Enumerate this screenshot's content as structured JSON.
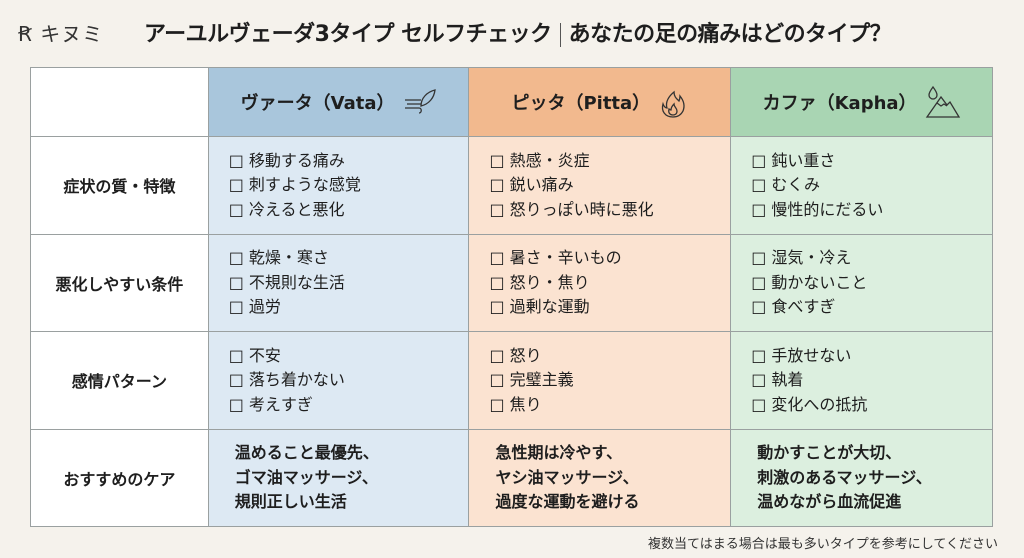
{
  "logo": "キヌミ",
  "title": {
    "main": "アーユルヴェーダ3タイプ セルフチェック",
    "sub": "あなたの足の痛みはどのタイプ？"
  },
  "columns": [
    {
      "label": "ヴァータ（Vata）",
      "icon": "wind-feather-icon",
      "color": "#a9c6dc"
    },
    {
      "label": "ピッタ（Pitta）",
      "icon": "flame-icon",
      "color": "#f2b98e"
    },
    {
      "label": "カファ（Kapha）",
      "icon": "water-mountain-icon",
      "color": "#a9d5b3"
    }
  ],
  "rows": [
    {
      "label": "症状の質・特徴",
      "cells": [
        [
          "□ 移動する痛み",
          "□ 刺すような感覚",
          "□ 冷えると悪化"
        ],
        [
          "□ 熱感・炎症",
          "□ 鋭い痛み",
          "□ 怒りっぽい時に悪化"
        ],
        [
          "□ 鈍い重さ",
          "□ むくみ",
          "□ 慢性的にだるい"
        ]
      ]
    },
    {
      "label": "悪化しやすい条件",
      "cells": [
        [
          "□ 乾燥・寒さ",
          "□ 不規則な生活",
          "□ 過労"
        ],
        [
          "□ 暑さ・辛いもの",
          "□ 怒り・焦り",
          "□ 過剰な運動"
        ],
        [
          "□ 湿気・冷え",
          "□ 動かないこと",
          "□ 食べすぎ"
        ]
      ]
    },
    {
      "label": "感情パターン",
      "cells": [
        [
          "□ 不安",
          "□ 落ち着かない",
          "□ 考えすぎ"
        ],
        [
          "□ 怒り",
          "□ 完璧主義",
          "□ 焦り"
        ],
        [
          "□ 手放せない",
          "□ 執着",
          "□ 変化への抵抗"
        ]
      ]
    },
    {
      "label": "おすすめのケア",
      "cells": [
        [
          "温めること最優先、",
          "ゴマ油マッサージ、",
          "規則正しい生活"
        ],
        [
          "急性期は冷やす、",
          "ヤシ油マッサージ、",
          "過度な運動を避ける"
        ],
        [
          "動かすことが大切、",
          "刺激のあるマッサージ、",
          "温めながら血流促進"
        ]
      ]
    }
  ],
  "footnote": "複数当てはまる場合は最も多いタイプを参考にしてください"
}
